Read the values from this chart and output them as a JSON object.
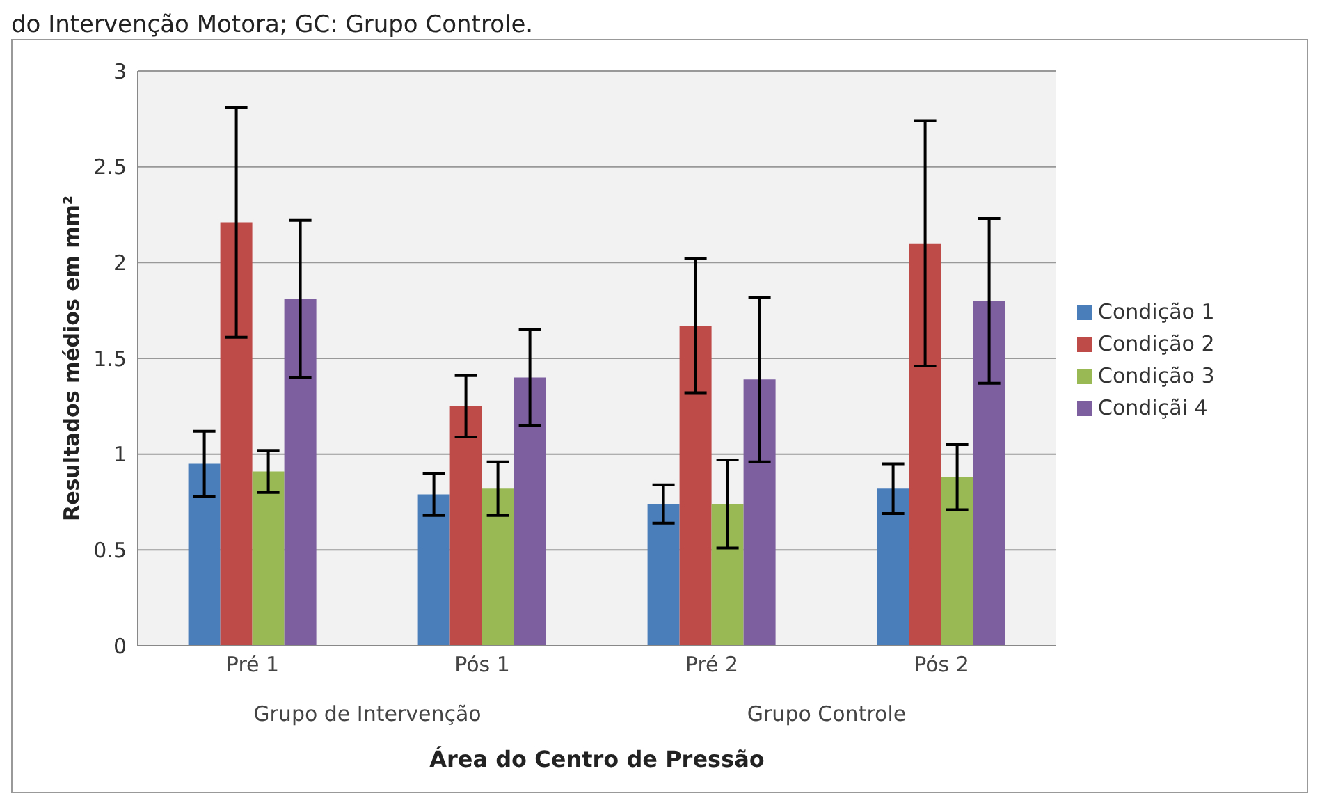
{
  "chart_data": {
    "type": "bar",
    "categories": [
      "Pré 1",
      "Pós 1",
      "Pré 2",
      "Pós 2"
    ],
    "series": [
      {
        "name": "Condição 1",
        "color": "#4a7ebb",
        "values": [
          0.95,
          0.79,
          0.74,
          0.82
        ],
        "errors": [
          0.17,
          0.11,
          0.1,
          0.13
        ]
      },
      {
        "name": "Condição 2",
        "color": "#be4b48",
        "values": [
          2.21,
          1.25,
          1.67,
          2.1
        ],
        "errors": [
          0.6,
          0.16,
          0.35,
          0.64
        ]
      },
      {
        "name": "Condição 3",
        "color": "#98b954",
        "values": [
          0.91,
          0.82,
          0.74,
          0.88
        ],
        "errors": [
          0.11,
          0.14,
          0.23,
          0.17
        ]
      },
      {
        "name": "Condiçãi 4",
        "color": "#7d5fa0",
        "values": [
          1.81,
          1.4,
          1.39,
          1.8
        ],
        "errors": [
          0.41,
          0.25,
          0.43,
          0.43
        ]
      }
    ],
    "ylim": [
      0,
      3
    ],
    "yticks": [
      0,
      0.5,
      1,
      1.5,
      2,
      2.5,
      3
    ],
    "ylabel": "Resultados médios em mm²",
    "xlabel": "Área do Centro de Pressão",
    "annotations": [
      "do Intervenção Motora; GC: Grupo Controle.",
      "Grupo de Intervenção",
      "Grupo Controle"
    ],
    "grid": "y",
    "legend": "right"
  }
}
